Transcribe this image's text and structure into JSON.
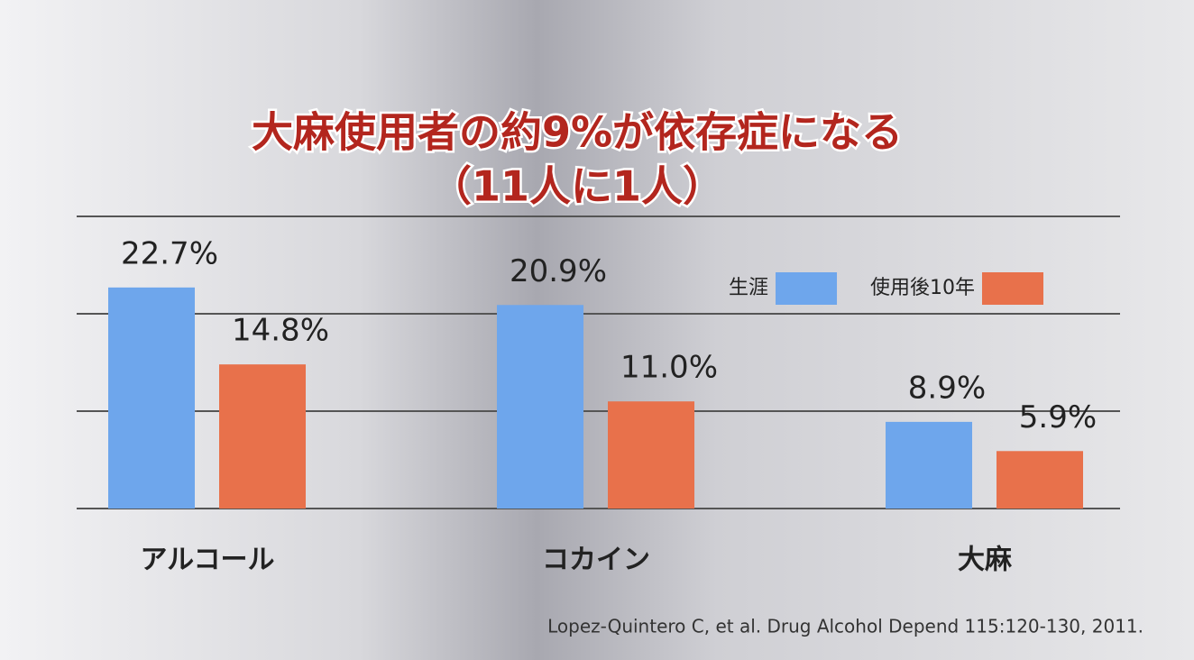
{
  "chart_data": {
    "type": "bar",
    "title": "大麻使用者の約9%が依存症になる",
    "subtitle": "（11人に1人）",
    "categories": [
      "アルコール",
      "コカイン",
      "大麻"
    ],
    "series": [
      {
        "name": "生涯",
        "color": "#6ea6ec",
        "values": [
          22.7,
          20.9,
          8.9
        ],
        "value_labels": [
          "22.7%",
          "20.9%",
          "8.9%"
        ]
      },
      {
        "name": "使用後10年",
        "color": "#e8714b",
        "values": [
          14.8,
          11.0,
          5.9
        ],
        "value_labels": [
          "14.8%",
          "11.0%",
          "5.9%"
        ]
      }
    ],
    "ylim": [
      0,
      30
    ],
    "yticks": [
      0,
      10,
      20,
      30
    ],
    "grid": true,
    "source": "Lopez-Quintero C, et al. Drug Alcohol Depend 115:120-130, 2011."
  }
}
